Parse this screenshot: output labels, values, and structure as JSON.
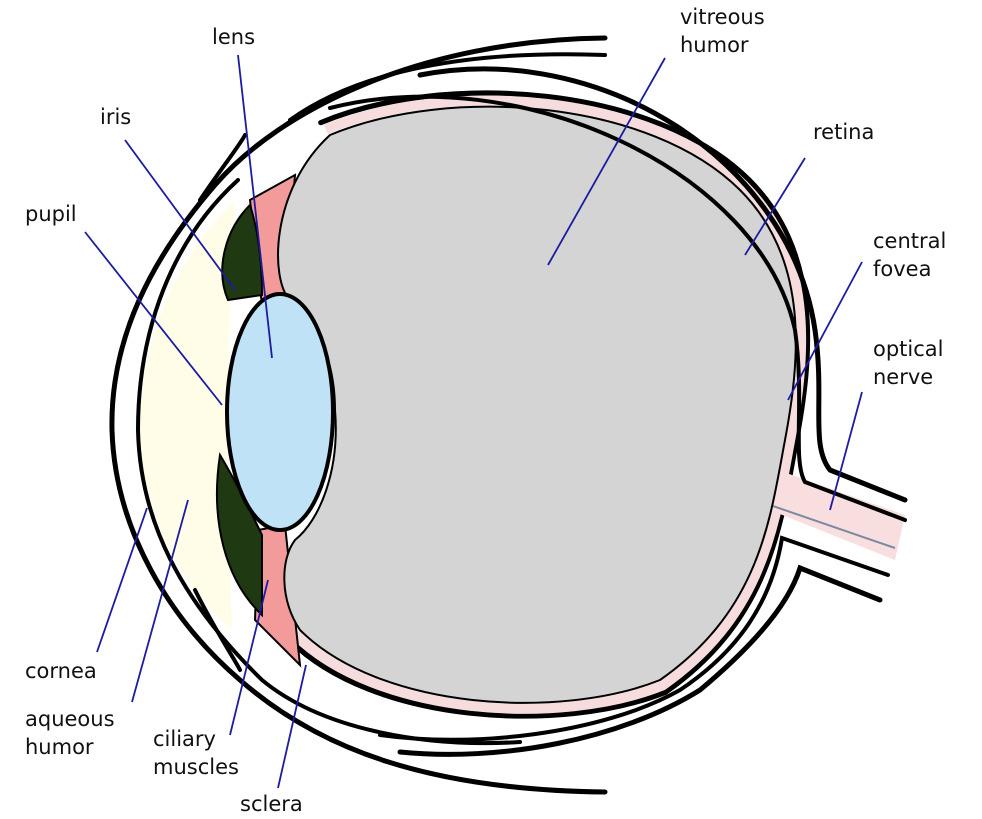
{
  "labels": [
    {
      "lines": [
        "lens"
      ]
    },
    {
      "lines": [
        "iris"
      ]
    },
    {
      "lines": [
        "pupil"
      ]
    },
    {
      "lines": [
        "vitreous",
        "humor"
      ]
    },
    {
      "lines": [
        "retina"
      ]
    },
    {
      "lines": [
        "central",
        "fovea"
      ]
    },
    {
      "lines": [
        "optical",
        "nerve"
      ]
    },
    {
      "lines": [
        "cornea"
      ]
    },
    {
      "lines": [
        "aqueous",
        "humor"
      ]
    },
    {
      "lines": [
        "ciliary",
        "muscles"
      ]
    },
    {
      "lines": [
        "sclera"
      ]
    }
  ]
}
